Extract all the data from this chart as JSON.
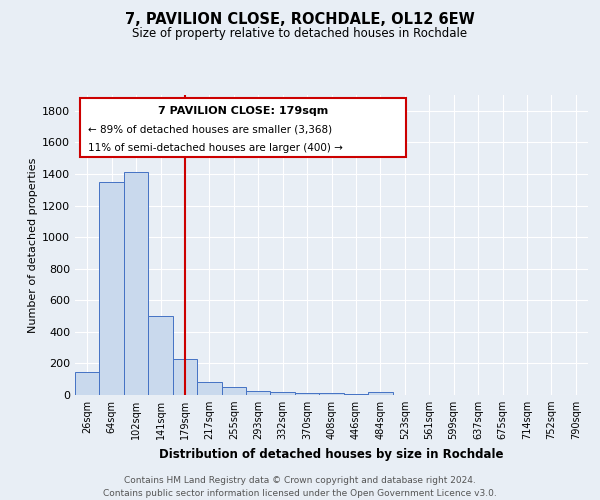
{
  "title1": "7, PAVILION CLOSE, ROCHDALE, OL12 6EW",
  "title2": "Size of property relative to detached houses in Rochdale",
  "xlabel": "Distribution of detached houses by size in Rochdale",
  "ylabel": "Number of detached properties",
  "categories": [
    "26sqm",
    "64sqm",
    "102sqm",
    "141sqm",
    "179sqm",
    "217sqm",
    "255sqm",
    "293sqm",
    "332sqm",
    "370sqm",
    "408sqm",
    "446sqm",
    "484sqm",
    "523sqm",
    "561sqm",
    "599sqm",
    "637sqm",
    "675sqm",
    "714sqm",
    "752sqm",
    "790sqm"
  ],
  "values": [
    145,
    1350,
    1410,
    500,
    225,
    80,
    48,
    28,
    18,
    10,
    15,
    8,
    18,
    0,
    0,
    0,
    0,
    0,
    0,
    0,
    0
  ],
  "bar_color": "#c9d9ed",
  "bar_edge_color": "#4472c4",
  "vline_x_idx": 4,
  "vline_color": "#cc0000",
  "annotation_title": "7 PAVILION CLOSE: 179sqm",
  "annotation_line1": "← 89% of detached houses are smaller (3,368)",
  "annotation_line2": "11% of semi-detached houses are larger (400) →",
  "annotation_box_color": "#ffffff",
  "annotation_box_edge": "#cc0000",
  "ylim": [
    0,
    1900
  ],
  "yticks": [
    0,
    200,
    400,
    600,
    800,
    1000,
    1200,
    1400,
    1600,
    1800
  ],
  "bg_color": "#e8eef5",
  "plot_bg_color": "#e8eef5",
  "grid_color": "#ffffff",
  "footer": "Contains HM Land Registry data © Crown copyright and database right 2024.\nContains public sector information licensed under the Open Government Licence v3.0."
}
